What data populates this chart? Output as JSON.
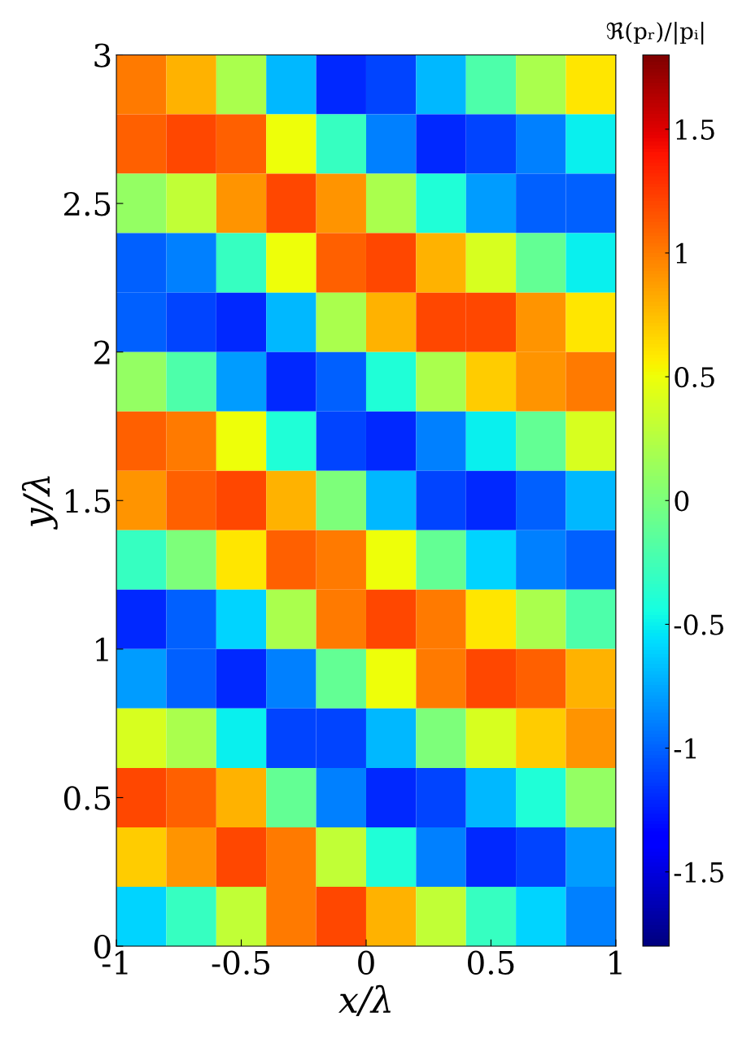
{
  "chart_data": {
    "type": "heatmap",
    "xlabel": "x/λ",
    "ylabel": "y/λ",
    "clabel": "ℜ(pᵣ)/|pᵢ|",
    "x": [
      -0.9,
      -0.7,
      -0.5,
      -0.3,
      -0.1,
      0.1,
      0.3,
      0.5,
      0.7,
      0.9
    ],
    "y": [
      2.9,
      2.7,
      2.5,
      2.3,
      2.1,
      1.9,
      1.7,
      1.5,
      1.3,
      1.1,
      0.9,
      0.7,
      0.5,
      0.3,
      0.1
    ],
    "xlim": [
      -1,
      1
    ],
    "xticks": [
      -1,
      -0.5,
      0,
      0.5,
      1
    ],
    "ylim": [
      0,
      3
    ],
    "yticks": [
      0,
      0.5,
      1,
      1.5,
      2,
      2.5,
      3
    ],
    "clim": [
      -1.8,
      1.8
    ],
    "cticks": [
      -1.5,
      -1,
      -0.5,
      0,
      0.5,
      1,
      1.5
    ],
    "cells": [
      [
        1.0,
        0.8,
        0.2,
        -0.7,
        -1.2,
        -1.1,
        -0.7,
        -0.2,
        0.2,
        0.6
      ],
      [
        1.1,
        1.2,
        1.1,
        0.5,
        -0.3,
        -0.9,
        -1.2,
        -1.1,
        -0.9,
        -0.5
      ],
      [
        0.1,
        0.3,
        0.9,
        1.2,
        0.9,
        0.2,
        -0.4,
        -0.8,
        -1.0,
        -1.0
      ],
      [
        -1.0,
        -0.9,
        -0.3,
        0.5,
        1.1,
        1.2,
        0.8,
        0.4,
        -0.1,
        -0.5
      ],
      [
        -1.0,
        -1.1,
        -1.2,
        -0.7,
        0.2,
        0.8,
        1.2,
        1.2,
        0.9,
        0.6
      ],
      [
        0.1,
        -0.2,
        -0.8,
        -1.2,
        -1.0,
        -0.4,
        0.2,
        0.7,
        0.9,
        1.0
      ],
      [
        1.1,
        1.0,
        0.5,
        -0.4,
        -1.1,
        -1.2,
        -0.9,
        -0.5,
        -0.1,
        0.4
      ],
      [
        0.9,
        1.1,
        1.2,
        0.8,
        0.0,
        -0.7,
        -1.1,
        -1.2,
        -1.0,
        -0.7
      ],
      [
        -0.3,
        0.0,
        0.6,
        1.1,
        1.0,
        0.5,
        -0.1,
        -0.6,
        -0.9,
        -1.0
      ],
      [
        -1.2,
        -1.0,
        -0.6,
        0.2,
        1.0,
        1.2,
        1.0,
        0.6,
        0.2,
        -0.2
      ],
      [
        -0.8,
        -1.0,
        -1.2,
        -0.9,
        -0.1,
        0.5,
        1.0,
        1.2,
        1.1,
        0.8
      ],
      [
        0.4,
        0.2,
        -0.5,
        -1.1,
        -1.1,
        -0.7,
        0.0,
        0.4,
        0.7,
        0.9
      ],
      [
        1.2,
        1.1,
        0.8,
        -0.1,
        -0.9,
        -1.2,
        -1.1,
        -0.7,
        -0.4,
        0.1
      ],
      [
        0.7,
        0.9,
        1.2,
        1.0,
        0.3,
        -0.4,
        -0.9,
        -1.2,
        -1.1,
        -0.8
      ],
      [
        -0.6,
        -0.3,
        0.3,
        1.0,
        1.2,
        0.8,
        0.3,
        -0.3,
        -0.6,
        -0.9
      ]
    ]
  }
}
